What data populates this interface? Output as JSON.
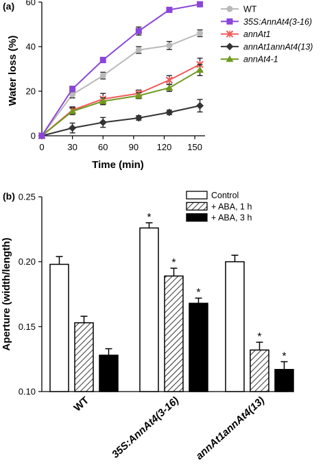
{
  "chart_data": [
    {
      "panel": "(a)",
      "type": "line",
      "xlabel": "Time (min)",
      "ylabel": "Water loss (%)",
      "xlim": [
        0,
        160
      ],
      "ylim": [
        0,
        60
      ],
      "xticks": [
        "0",
        "30",
        "60",
        "90",
        "120",
        "150"
      ],
      "yticks": [
        "0",
        "20",
        "40",
        "60"
      ],
      "x": [
        0,
        30,
        60,
        95,
        125,
        155
      ],
      "series": [
        {
          "name": "WT",
          "color": "#b9b9b9",
          "marker": "circle",
          "values": [
            0,
            18.5,
            27,
            38.5,
            40.5,
            46
          ],
          "errors": [
            0,
            1.5,
            1.5,
            1.5,
            1.8,
            1.5
          ]
        },
        {
          "name": "35S:AnnAt4(3-16)",
          "color": "#8b45d9",
          "marker": "square",
          "values": [
            0,
            21,
            34,
            47,
            56.5,
            59
          ],
          "errors": [
            0,
            1.2,
            1.2,
            1.8,
            1.0,
            0.8
          ]
        },
        {
          "name": "annAt1",
          "color": "#f05a5a",
          "marker": "x",
          "values": [
            0,
            11.5,
            16.5,
            19,
            25,
            32
          ],
          "errors": [
            0,
            1.5,
            2.5,
            1.5,
            2.0,
            2.8
          ]
        },
        {
          "name": "annAt1annAt4(13)",
          "color": "#333333",
          "marker": "diamond",
          "values": [
            0,
            3.5,
            6,
            8,
            10.5,
            13.5
          ],
          "errors": [
            0,
            2.2,
            2.2,
            1.0,
            1.0,
            2.8
          ]
        },
        {
          "name": "annAt4-1",
          "color": "#6f9a1e",
          "marker": "triangle",
          "values": [
            0,
            11,
            15.5,
            18,
            21.5,
            29.5
          ],
          "errors": [
            0,
            1.5,
            1.5,
            1.3,
            1.6,
            2.5
          ]
        }
      ]
    },
    {
      "panel": "(b)",
      "type": "bar",
      "ylabel": "Aperture (width/length)",
      "ylim": [
        0.1,
        0.25
      ],
      "yticks": [
        "0.10",
        "0.15",
        "0.20",
        "0.25"
      ],
      "categories": [
        "WT",
        "35S:AnnAt4(3-16)",
        "annAt1annAt4(13)"
      ],
      "series": [
        {
          "name": "Control",
          "fill": "white",
          "values": [
            0.198,
            0.226,
            0.2
          ],
          "errors": [
            0.006,
            0.004,
            0.005
          ],
          "significant": [
            false,
            true,
            false
          ]
        },
        {
          "name": "+ ABA, 1 h",
          "fill": "hatch",
          "values": [
            0.153,
            0.189,
            0.132
          ],
          "errors": [
            0.005,
            0.006,
            0.006
          ],
          "significant": [
            false,
            true,
            true
          ]
        },
        {
          "name": "+ ABA, 3 h",
          "fill": "black",
          "values": [
            0.128,
            0.168,
            0.117
          ],
          "errors": [
            0.005,
            0.004,
            0.006
          ],
          "significant": [
            false,
            true,
            true
          ]
        }
      ],
      "significance_marker": "*"
    }
  ]
}
